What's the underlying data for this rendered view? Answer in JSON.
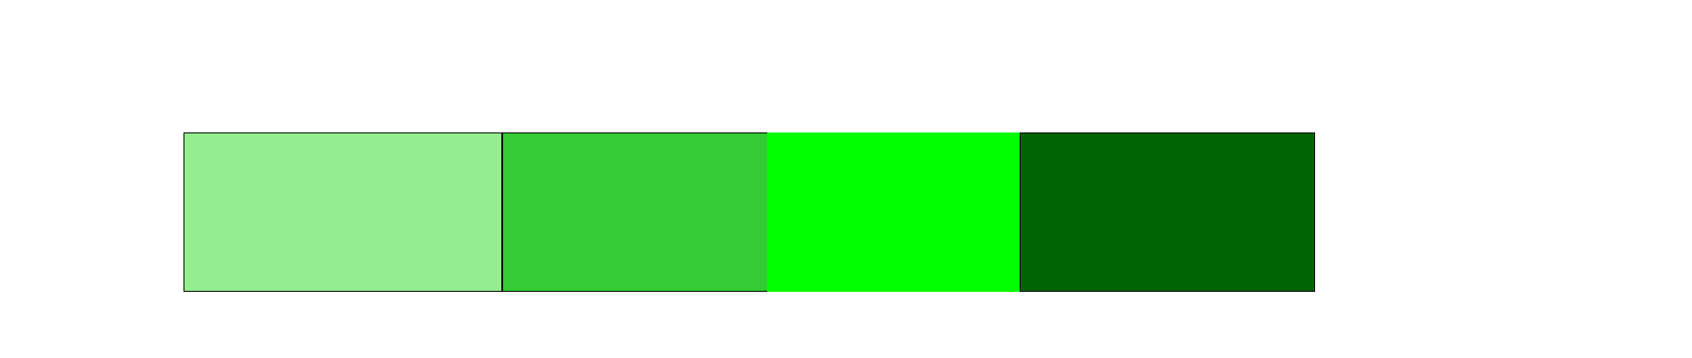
{
  "swatches": [
    {
      "name": "swatch-light-green",
      "color": "#93ee8f",
      "outlined": true
    },
    {
      "name": "swatch-medium-green",
      "color": "#33cc33",
      "outlined": true
    },
    {
      "name": "swatch-bright-green",
      "color": "#00ff00",
      "outlined": false
    },
    {
      "name": "swatch-dark-green",
      "color": "#006400",
      "outlined": true
    }
  ]
}
